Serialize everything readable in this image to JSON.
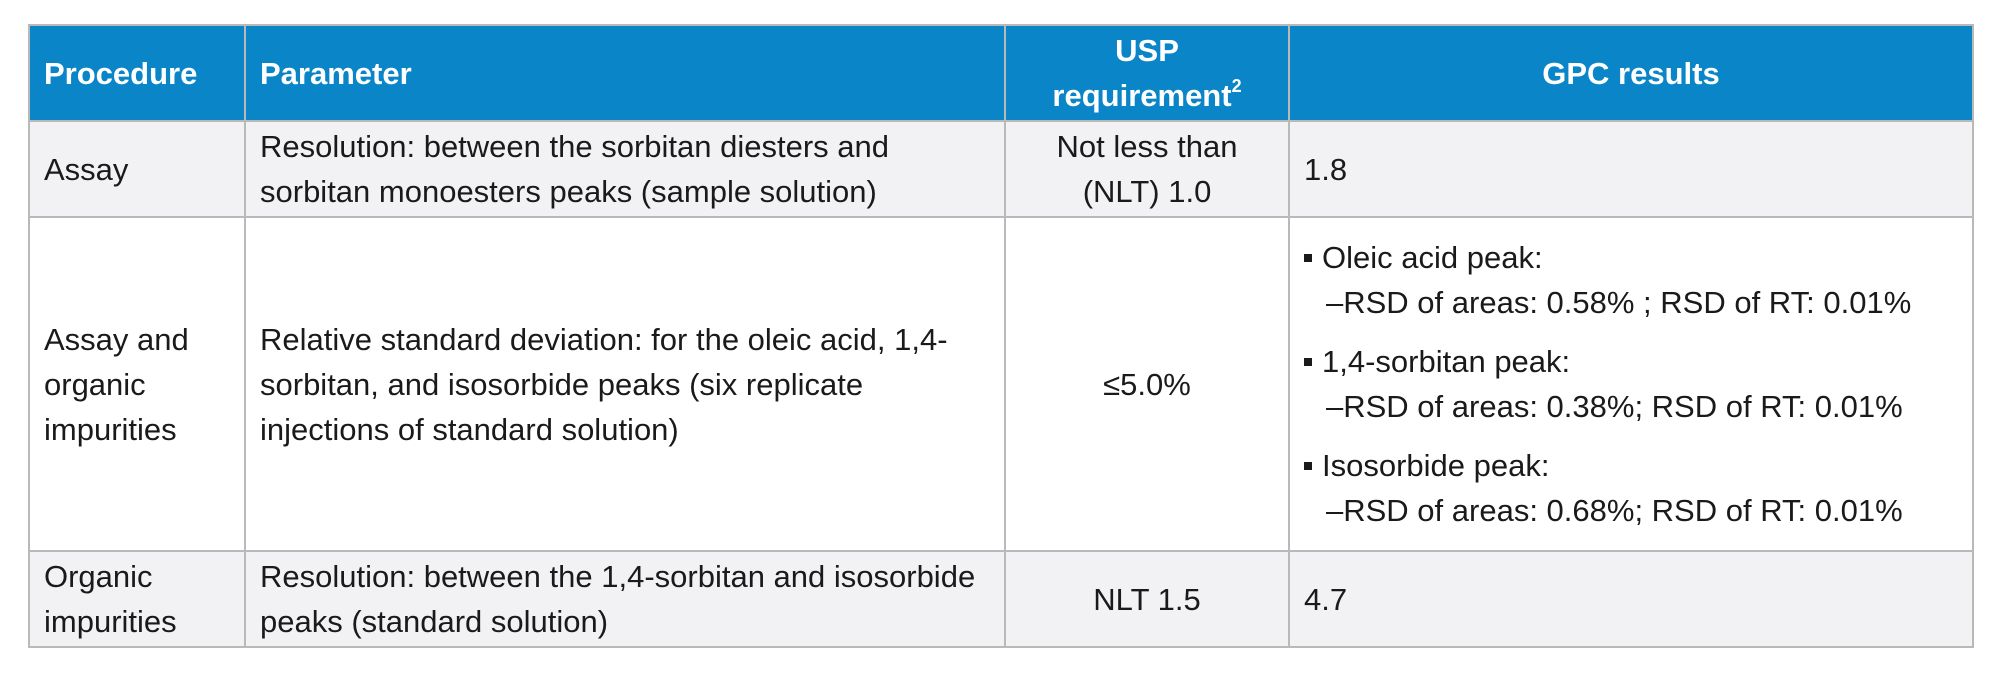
{
  "table": {
    "headers": {
      "procedure": "Procedure",
      "parameter": "Parameter",
      "usp_requirement": "USP requirement",
      "usp_footnote": "2",
      "gpc_results": "GPC results"
    },
    "rows": [
      {
        "procedure": "Assay",
        "parameter": "Resolution: between the sorbitan diesters and sorbitan monoesters peaks (sample solution)",
        "usp_requirement": "Not less than (NLT) 1.0",
        "gpc_result": "1.8"
      },
      {
        "procedure": "Assay and organic impurities",
        "parameter": "Relative standard deviation: for the oleic acid, 1,4-sorbitan, and isosorbide peaks (six replicate injections of standard solution)",
        "usp_requirement": "≤5.0%",
        "gpc_results": [
          {
            "peak": "Oleic acid peak:",
            "detail": "–RSD of areas: 0.58% ; RSD of RT: 0.01%"
          },
          {
            "peak": "1,4-sorbitan peak:",
            "detail": "–RSD of areas: 0.38%; RSD of RT: 0.01%"
          },
          {
            "peak": "Isosorbide peak:",
            "detail": "–RSD of areas: 0.68%; RSD of RT: 0.01%"
          }
        ]
      },
      {
        "procedure": "Organic impurities",
        "parameter": "Resolution: between the 1,4-sorbitan and isosorbide peaks (standard solution)",
        "usp_requirement": "NLT 1.5",
        "gpc_result": "4.7"
      }
    ]
  }
}
